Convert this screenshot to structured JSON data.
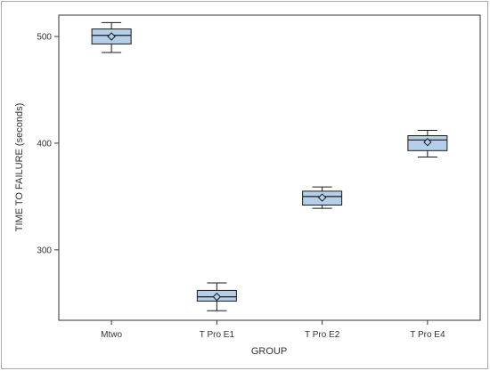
{
  "chart_data": {
    "type": "box",
    "title": "",
    "xlabel": "GROUP",
    "ylabel": "TIME TO FAILURE (seconds)",
    "ylim": [
      234,
      520
    ],
    "yticks": [
      300,
      400,
      500
    ],
    "grid": false,
    "categories": [
      "Mtwo",
      "T Pro E1",
      "T Pro E2",
      "T Pro E4"
    ],
    "boxes": [
      {
        "category": "Mtwo",
        "min": 485,
        "q1": 493,
        "median": 501,
        "q3": 507,
        "max": 513,
        "mean": 500
      },
      {
        "category": "T Pro E1",
        "min": 243,
        "q1": 252,
        "median": 256,
        "q3": 262,
        "max": 269,
        "mean": 256
      },
      {
        "category": "T Pro E2",
        "min": 339,
        "q1": 342,
        "median": 350,
        "q3": 355,
        "max": 359,
        "mean": 349
      },
      {
        "category": "T Pro E4",
        "min": 387,
        "q1": 393,
        "median": 403,
        "q3": 407,
        "max": 412,
        "mean": 401
      }
    ],
    "colors": {
      "box_fill": "#b5cfe8",
      "box_stroke": "#1a1a1a",
      "axis": "#333333"
    }
  }
}
